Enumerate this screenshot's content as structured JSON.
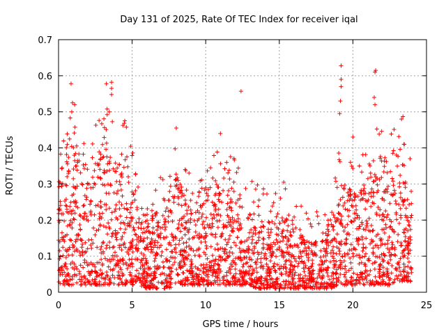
{
  "chart_data": {
    "type": "scatter",
    "title": "Day 131 of 2025, Rate Of TEC Index for receiver iqal",
    "xlabel": "GPS time / hours",
    "ylabel": "ROTI / TECUs",
    "xlim": [
      0,
      25
    ],
    "ylim": [
      0,
      0.7
    ],
    "xticks": [
      0,
      5,
      10,
      15,
      20,
      25
    ],
    "xtick_labels": [
      "0",
      "5",
      "10",
      "15",
      "20",
      "25"
    ],
    "yticks": [
      0,
      0.1,
      0.2,
      0.3,
      0.4,
      0.5,
      0.6,
      0.7
    ],
    "ytick_labels": [
      "0",
      "0.1",
      "0.2",
      "0.3",
      "0.4",
      "0.5",
      "0.6",
      "0.7"
    ],
    "grid": true,
    "marker": "+",
    "color": "#ff0000",
    "envelope": {
      "description_hours": [
        0,
        0.5,
        1,
        1.5,
        2,
        2.5,
        3,
        3.5,
        4,
        4.5,
        5,
        5.5,
        6,
        6.5,
        7,
        7.5,
        8,
        8.5,
        9,
        9.5,
        10,
        10.5,
        11,
        11.5,
        12,
        12.5,
        13,
        13.5,
        14,
        14.5,
        15,
        15.5,
        16,
        16.5,
        17,
        17.5,
        18,
        18.5,
        19,
        19.5,
        20,
        20.5,
        21,
        21.5,
        22,
        22.5,
        23,
        23.5,
        24
      ],
      "typical_max": [
        0.3,
        0.36,
        0.45,
        0.4,
        0.32,
        0.38,
        0.45,
        0.4,
        0.36,
        0.4,
        0.3,
        0.27,
        0.2,
        0.22,
        0.25,
        0.28,
        0.33,
        0.27,
        0.24,
        0.28,
        0.3,
        0.3,
        0.3,
        0.28,
        0.3,
        0.25,
        0.22,
        0.22,
        0.2,
        0.19,
        0.2,
        0.22,
        0.17,
        0.16,
        0.15,
        0.14,
        0.15,
        0.22,
        0.3,
        0.3,
        0.28,
        0.28,
        0.32,
        0.4,
        0.38,
        0.38,
        0.4,
        0.35,
        0.28
      ],
      "typical_min": [
        0.02,
        0.02,
        0.02,
        0.02,
        0.02,
        0.02,
        0.02,
        0.02,
        0.02,
        0.02,
        0.02,
        0.02,
        0.01,
        0.01,
        0.01,
        0.01,
        0.02,
        0.02,
        0.02,
        0.02,
        0.02,
        0.02,
        0.02,
        0.02,
        0.02,
        0.02,
        0.02,
        0.01,
        0.01,
        0.01,
        0.01,
        0.01,
        0.01,
        0.01,
        0.01,
        0.01,
        0.01,
        0.01,
        0.02,
        0.02,
        0.02,
        0.02,
        0.02,
        0.02,
        0.02,
        0.02,
        0.03,
        0.03,
        0.03
      ]
    },
    "notable_points": [
      {
        "x": 0.85,
        "y": 0.578
      },
      {
        "x": 0.95,
        "y": 0.525
      },
      {
        "x": 1.1,
        "y": 0.52
      },
      {
        "x": 0.9,
        "y": 0.5
      },
      {
        "x": 3.25,
        "y": 0.578
      },
      {
        "x": 3.6,
        "y": 0.582
      },
      {
        "x": 3.6,
        "y": 0.565
      },
      {
        "x": 3.6,
        "y": 0.548
      },
      {
        "x": 3.3,
        "y": 0.508
      },
      {
        "x": 3.45,
        "y": 0.5
      },
      {
        "x": 4.5,
        "y": 0.475
      },
      {
        "x": 8.0,
        "y": 0.455
      },
      {
        "x": 12.4,
        "y": 0.557
      },
      {
        "x": 11.0,
        "y": 0.44
      },
      {
        "x": 19.2,
        "y": 0.628
      },
      {
        "x": 19.2,
        "y": 0.59
      },
      {
        "x": 19.2,
        "y": 0.57
      },
      {
        "x": 19.15,
        "y": 0.53
      },
      {
        "x": 19.1,
        "y": 0.495
      },
      {
        "x": 21.55,
        "y": 0.615
      },
      {
        "x": 21.5,
        "y": 0.61
      },
      {
        "x": 21.45,
        "y": 0.54
      },
      {
        "x": 21.5,
        "y": 0.52
      },
      {
        "x": 23.4,
        "y": 0.487
      },
      {
        "x": 23.3,
        "y": 0.48
      },
      {
        "x": 20.0,
        "y": 0.43
      },
      {
        "x": 17.9,
        "y": 0.14
      },
      {
        "x": 15.3,
        "y": 0.305
      }
    ]
  }
}
